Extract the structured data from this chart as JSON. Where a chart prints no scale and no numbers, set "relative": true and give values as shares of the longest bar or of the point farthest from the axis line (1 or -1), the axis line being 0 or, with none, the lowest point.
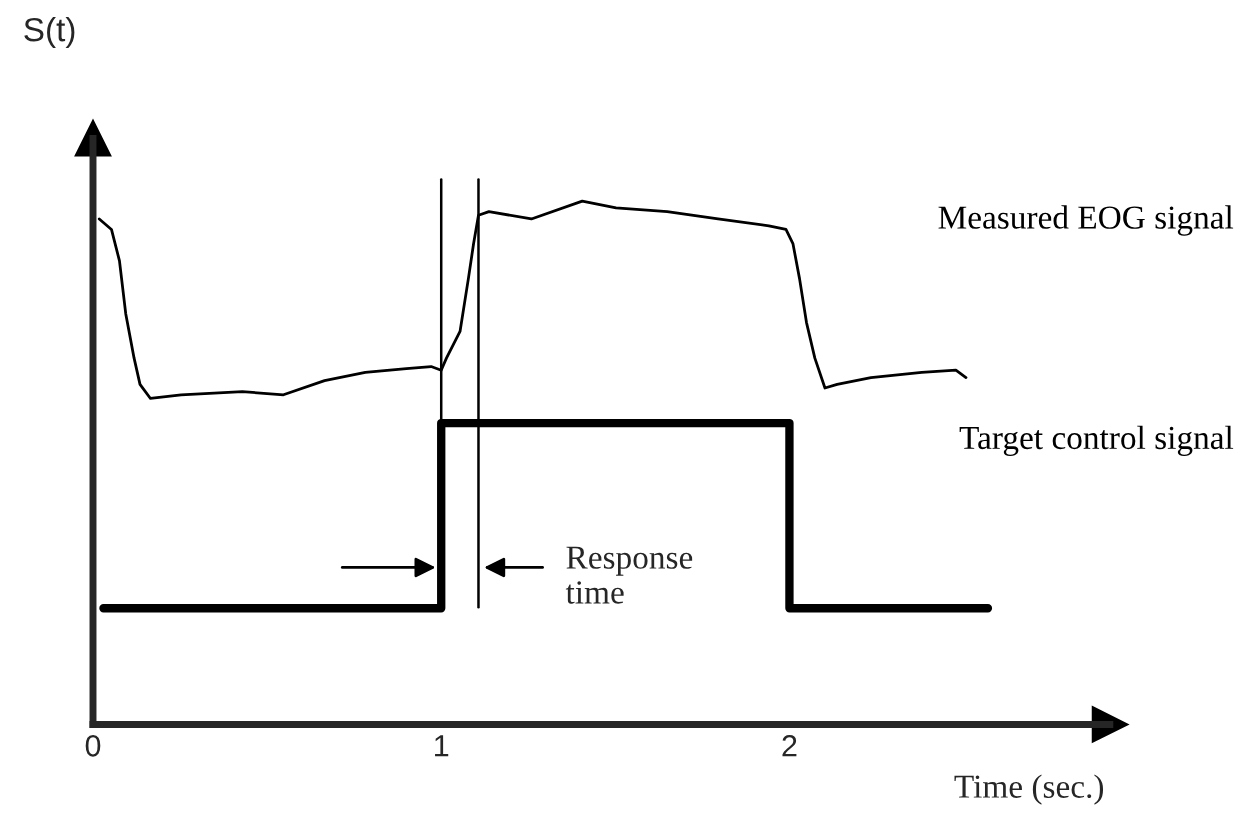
{
  "chart_data": {
    "type": "line",
    "relative": true,
    "xlabel": "Time (sec.)",
    "ylabel": "S(t)",
    "xlim": [
      0,
      2.92
    ],
    "xticks": [
      0,
      1,
      2
    ],
    "tick_labels": "x",
    "legend": false,
    "grid": false,
    "series": [
      {
        "name": "Measured EOG signal",
        "color": "#000000",
        "x": [
          0.018,
          0.053,
          0.076,
          0.094,
          0.118,
          0.135,
          0.165,
          0.253,
          0.429,
          0.547,
          0.665,
          0.782,
          0.9,
          0.971,
          1.0,
          1.015,
          1.054,
          1.078,
          1.093,
          1.107,
          1.137,
          1.259,
          1.405,
          1.502,
          1.649,
          1.795,
          1.941,
          1.99,
          2.01,
          2.029,
          2.049,
          2.073,
          2.102,
          2.137,
          2.234,
          2.38,
          2.478,
          2.507
        ],
        "values": [
          0.966,
          0.946,
          0.886,
          0.785,
          0.7,
          0.65,
          0.623,
          0.63,
          0.636,
          0.63,
          0.657,
          0.673,
          0.68,
          0.684,
          0.677,
          0.7,
          0.751,
          0.852,
          0.919,
          0.973,
          0.98,
          0.966,
          1.0,
          0.987,
          0.98,
          0.966,
          0.953,
          0.946,
          0.919,
          0.852,
          0.768,
          0.7,
          0.643,
          0.65,
          0.663,
          0.673,
          0.677,
          0.663
        ]
      },
      {
        "name": "Target control signal",
        "type": "step",
        "color": "#000000",
        "x": [
          0.03,
          1.0,
          2.0,
          2.57
        ],
        "values": [
          0.222,
          0.576,
          0.222,
          0.222
        ]
      }
    ],
    "ref_lines": [
      {
        "axis": "x",
        "value": 1.0,
        "color": "#000000"
      },
      {
        "axis": "x",
        "value": 1.107,
        "color": "#000000"
      }
    ],
    "annotations": [
      "Response time"
    ]
  }
}
